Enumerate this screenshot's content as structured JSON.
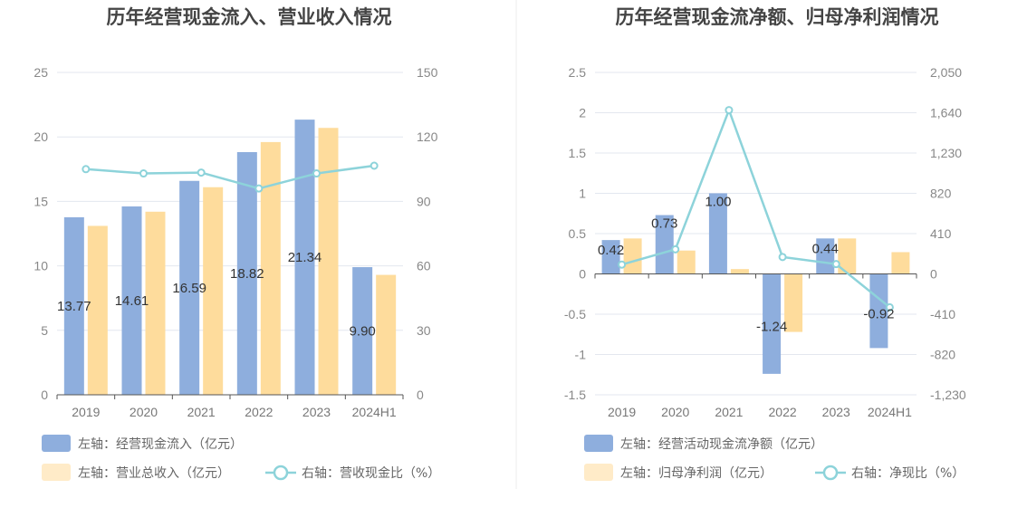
{
  "colors": {
    "bar_blue": "#8eaedd",
    "bar_orange": "#fedc9c",
    "legend_orange": "#ffebc8",
    "line_teal": "#8dd3da",
    "grid": "#e3e7ef",
    "axis": "#555555"
  },
  "chart_data": [
    {
      "type": "bar",
      "title": "历年经营现金流入、营业收入情况",
      "categories": [
        "2019",
        "2020",
        "2021",
        "2022",
        "2023",
        "2024H1"
      ],
      "left_axis": {
        "min": 0,
        "max": 25,
        "ticks": [
          "0",
          "5",
          "10",
          "15",
          "20",
          "25"
        ]
      },
      "right_axis": {
        "min": 0,
        "max": 150,
        "ticks": [
          "0",
          "30",
          "60",
          "90",
          "120",
          "150"
        ]
      },
      "series": [
        {
          "name": "左轴：经营现金流入（亿元）",
          "kind": "bar",
          "axis": "left",
          "color": "#8eaedd",
          "values": [
            13.77,
            14.61,
            16.59,
            18.82,
            21.34,
            9.9
          ],
          "labels": [
            "13.77",
            "14.61",
            "16.59",
            "18.82",
            "21.34",
            "9.90"
          ]
        },
        {
          "name": "左轴：营业总收入（亿元）",
          "kind": "bar",
          "axis": "left",
          "color": "#fedc9c",
          "values": [
            13.1,
            14.2,
            16.1,
            19.6,
            20.7,
            9.3
          ]
        },
        {
          "name": "右轴：营收现金比（%）",
          "kind": "line",
          "axis": "right",
          "color": "#8dd3da",
          "values": [
            105,
            103,
            103.4,
            96,
            103,
            106.6
          ]
        }
      ],
      "legend": [
        {
          "label": "左轴：经营现金流入（亿元）",
          "type": "rect",
          "color": "#8eaedd"
        },
        {
          "label": "左轴：营业总收入（亿元）",
          "type": "rect",
          "color": "#ffebc8"
        },
        {
          "label": "右轴：营收现金比（%）",
          "type": "line",
          "color": "#8dd3da"
        }
      ],
      "grid": true,
      "legend_position": "bottom-left"
    },
    {
      "type": "bar",
      "title": "历年经营现金流净额、归母净利润情况",
      "categories": [
        "2019",
        "2020",
        "2021",
        "2022",
        "2023",
        "2024H1"
      ],
      "left_axis": {
        "min": -1.5,
        "max": 2.5,
        "ticks": [
          "-1.5",
          "-1",
          "-0.5",
          "0",
          "0.5",
          "1",
          "1.5",
          "2",
          "2.5"
        ]
      },
      "right_axis": {
        "min": -1230,
        "max": 2050,
        "ticks": [
          "-1,230",
          "-820",
          "-410",
          "0",
          "410",
          "820",
          "1,230",
          "1,640",
          "2,050"
        ]
      },
      "series": [
        {
          "name": "左轴：经营活动现金流净额（亿元）",
          "kind": "bar",
          "axis": "left",
          "color": "#8eaedd",
          "values": [
            0.42,
            0.73,
            1.0,
            -1.24,
            0.44,
            -0.92
          ],
          "labels": [
            "0.42",
            "0.73",
            "1.00",
            "-1.24",
            "0.44",
            "-0.92"
          ]
        },
        {
          "name": "左轴：归母净利润（亿元）",
          "kind": "bar",
          "axis": "left",
          "color": "#fedc9c",
          "values": [
            0.44,
            0.29,
            0.06,
            -0.72,
            0.44,
            0.27
          ]
        },
        {
          "name": "右轴：净现比（%）",
          "kind": "line",
          "axis": "right",
          "color": "#8dd3da",
          "values": [
            95,
            250,
            1667,
            172,
            100,
            -340
          ]
        }
      ],
      "legend": [
        {
          "label": "左轴：经营活动现金流净额（亿元）",
          "type": "rect",
          "color": "#8eaedd"
        },
        {
          "label": "左轴：归母净利润（亿元）",
          "type": "rect",
          "color": "#ffebc8"
        },
        {
          "label": "右轴：净现比（%）",
          "type": "line",
          "color": "#8dd3da"
        }
      ],
      "grid": true,
      "legend_position": "bottom-left"
    }
  ]
}
